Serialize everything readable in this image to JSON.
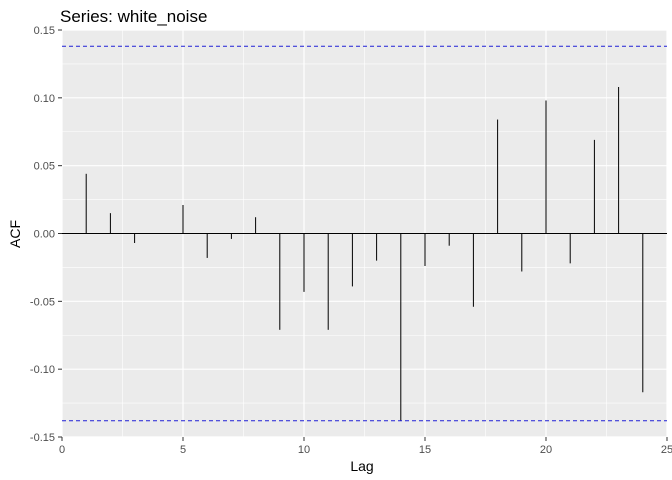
{
  "chart_data": {
    "type": "bar",
    "title": "Series: white_noise",
    "xlabel": "Lag",
    "ylabel": "ACF",
    "xlim": [
      0,
      25
    ],
    "ylim": [
      -0.15,
      0.15
    ],
    "x_ticks": [
      0,
      5,
      10,
      15,
      20,
      25
    ],
    "x_tick_labels": [
      "0",
      "5",
      "10",
      "15",
      "20",
      "25"
    ],
    "y_ticks": [
      -0.15,
      -0.1,
      -0.05,
      0.0,
      0.05,
      0.1,
      0.15
    ],
    "y_tick_labels": [
      "-0.15",
      "-0.10",
      "-0.05",
      "0.00",
      "0.05",
      "0.10",
      "0.15"
    ],
    "grid": true,
    "confidence_bounds": [
      0.138,
      -0.138
    ],
    "lags": [
      1,
      2,
      3,
      4,
      5,
      6,
      7,
      8,
      9,
      10,
      11,
      12,
      13,
      14,
      15,
      16,
      17,
      18,
      19,
      20,
      21,
      22,
      23,
      24
    ],
    "values": [
      0.044,
      0.015,
      -0.007,
      0.0,
      0.021,
      -0.018,
      -0.004,
      0.012,
      -0.071,
      -0.043,
      -0.071,
      -0.039,
      -0.02,
      -0.138,
      -0.024,
      -0.009,
      -0.054,
      0.084,
      -0.028,
      0.098,
      -0.022,
      0.069,
      0.108,
      -0.117
    ],
    "colors": {
      "panel_background": "#ebebeb",
      "grid": "#ffffff",
      "bar": "#000000",
      "bound": "#1f1fd6",
      "zero_line": "#000000"
    }
  }
}
